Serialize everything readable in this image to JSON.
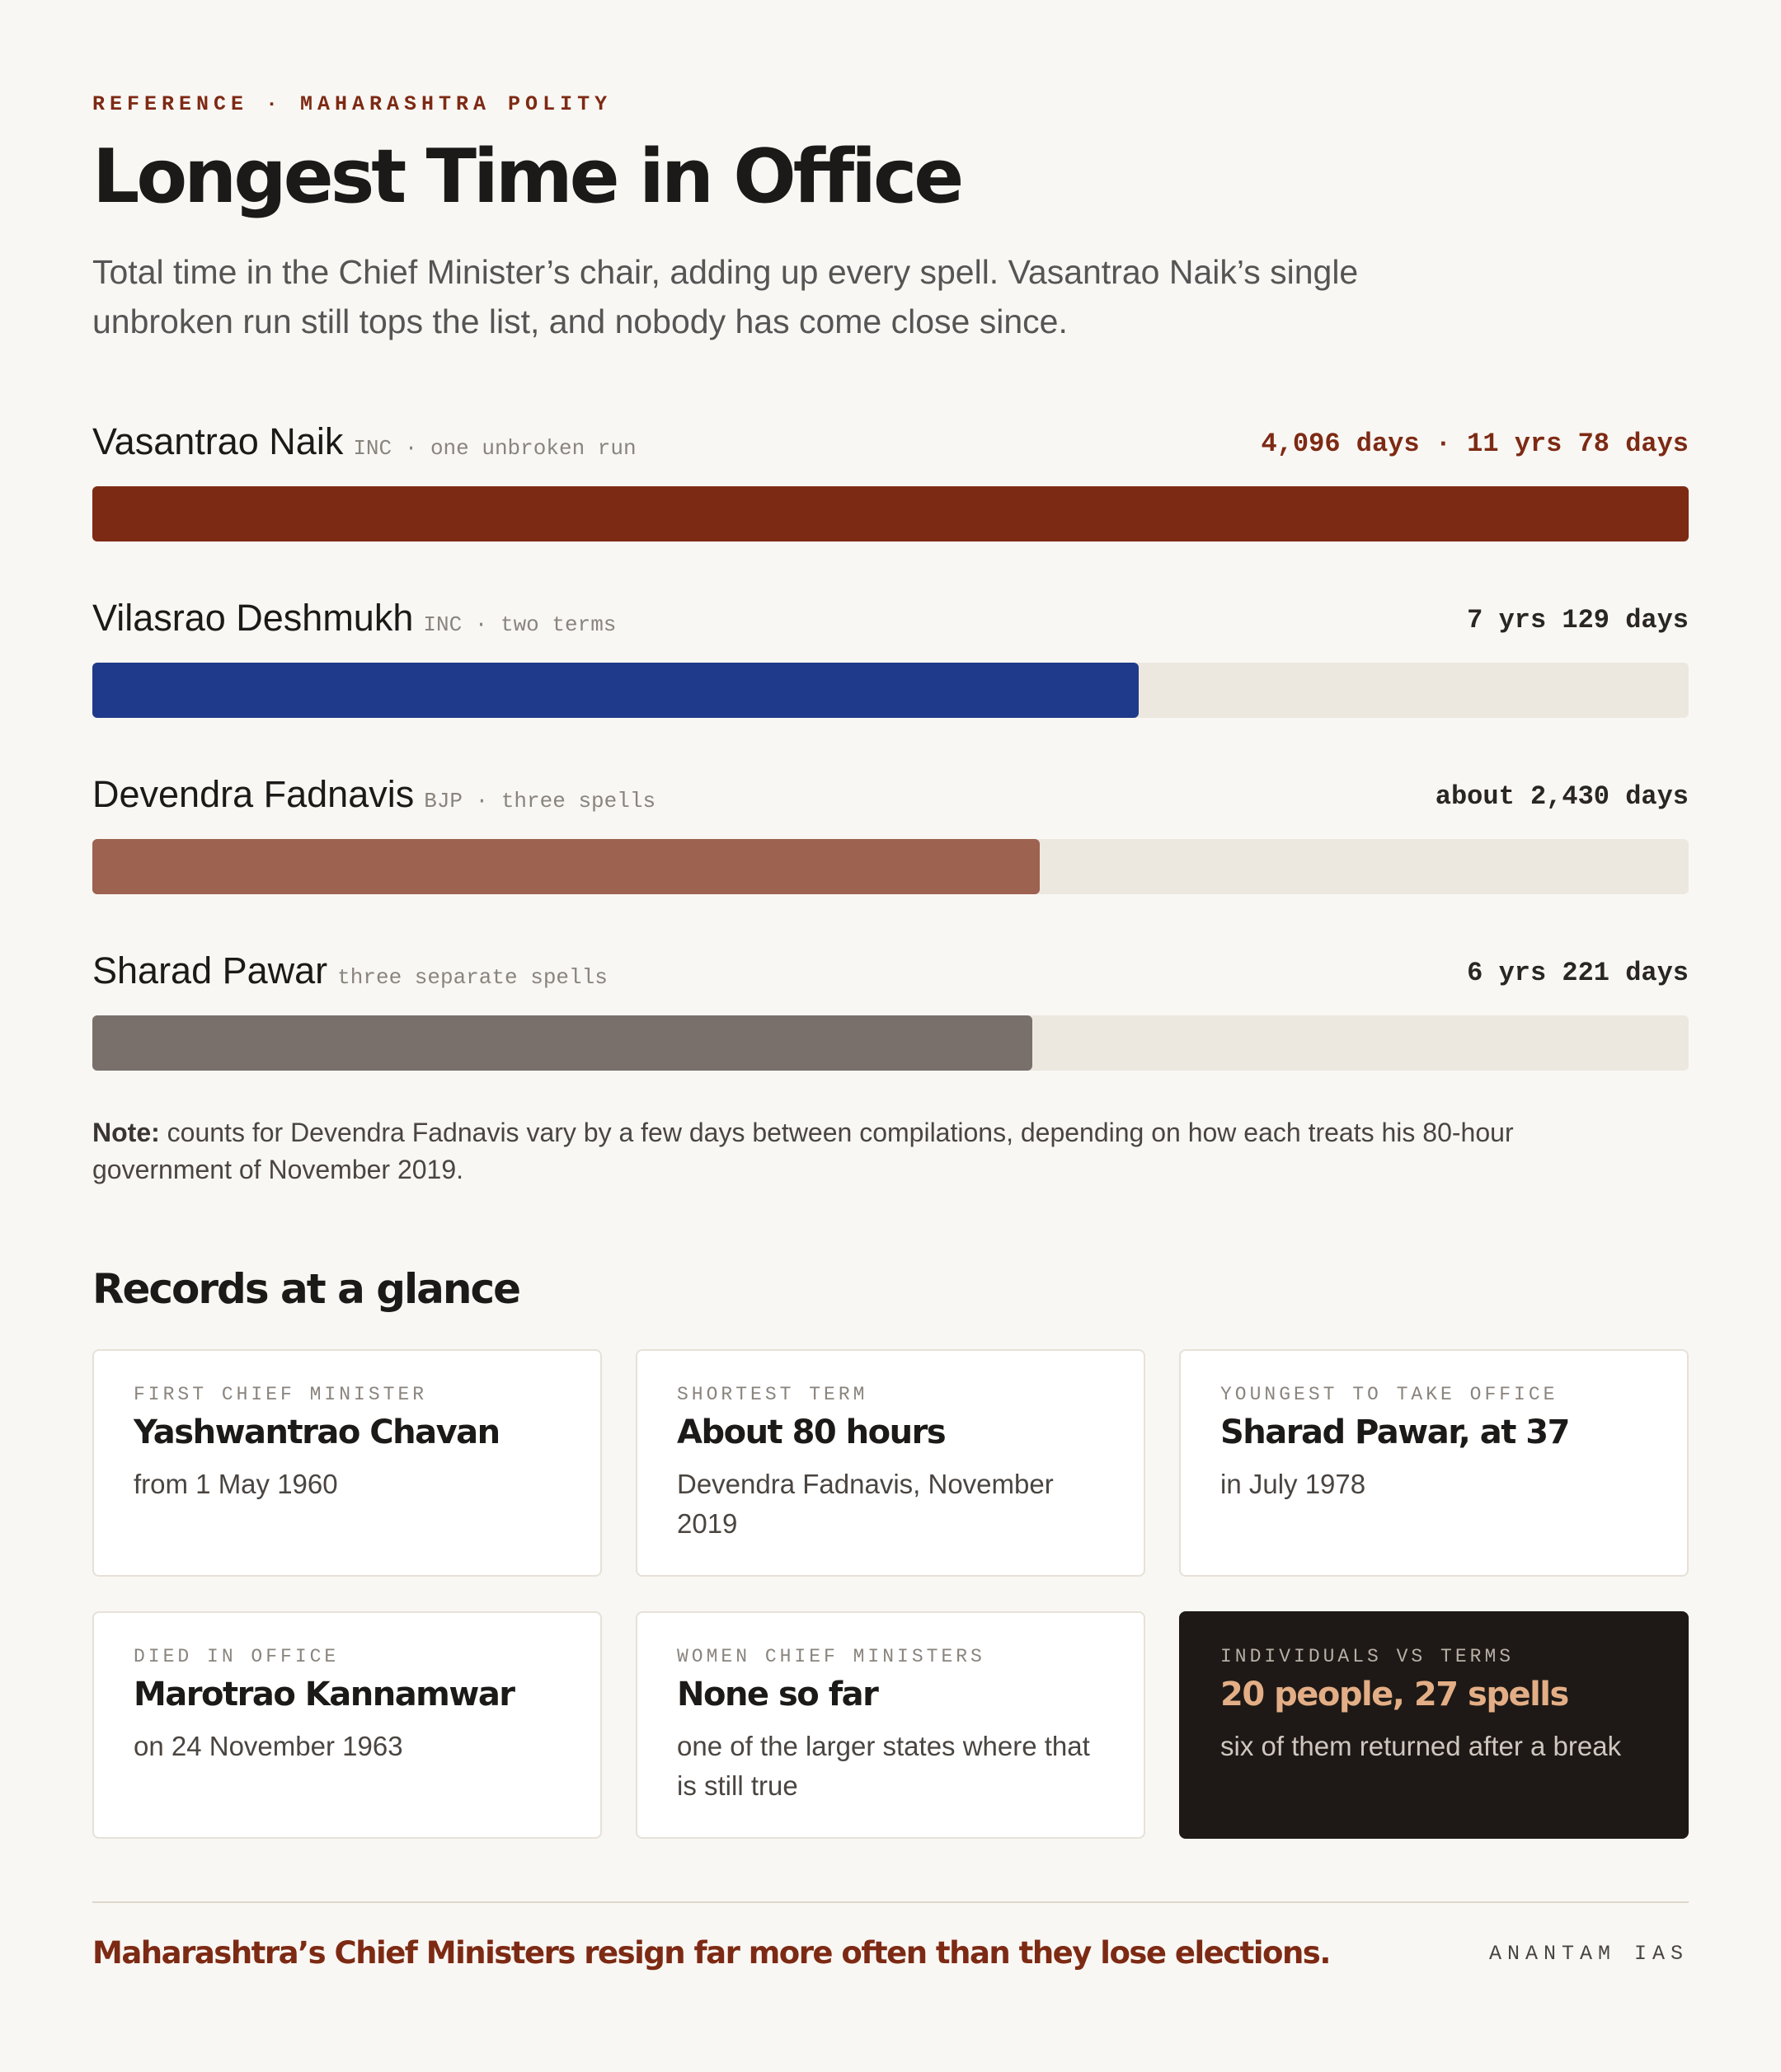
{
  "header": {
    "eyebrow": "REFERENCE · MAHARASHTRA POLITY",
    "title": "Longest Time in Office",
    "subtitle": "Total time in the Chief Minister’s chair, adding up every spell. Vasantrao Naik’s single unbroken run still tops the list, and nobody has come close since."
  },
  "chart_data": {
    "type": "bar",
    "categories": [
      "Vasantrao Naik",
      "Vilasrao Deshmukh",
      "Devendra Fadnavis",
      "Sharad Pawar"
    ],
    "details": [
      "INC · one unbroken run",
      "INC · two terms",
      "BJP · three spells",
      "three separate spells"
    ],
    "values": [
      4096,
      2685,
      2430,
      2412
    ],
    "value_labels": [
      "4,096 days · 11 yrs 78 days",
      "7 yrs 129 days",
      "about 2,430 days",
      "6 yrs 221 days"
    ],
    "colors": [
      "#7d2a14",
      "#1f3a8a",
      "#9e6250",
      "#79706b"
    ],
    "xlim": [
      0,
      4096
    ]
  },
  "note": {
    "label": "Note:",
    "text": "counts for Devendra Fadnavis vary by a few days between compilations, depending on how each treats his 80-hour government of November 2019."
  },
  "records": {
    "title": "Records at a glance",
    "cards": [
      {
        "label": "FIRST CHIEF MINISTER",
        "heading": "Yashwantrao Chavan",
        "text": "from 1 May 1960"
      },
      {
        "label": "SHORTEST TERM",
        "heading": "About 80 hours",
        "text": "Devendra Fadnavis, November 2019"
      },
      {
        "label": "YOUNGEST TO TAKE OFFICE",
        "heading": "Sharad Pawar, at 37",
        "text": "in July 1978"
      },
      {
        "label": "DIED IN OFFICE",
        "heading": "Marotrao Kannamwar",
        "text": "on 24 November 1963"
      },
      {
        "label": "WOMEN CHIEF MINISTERS",
        "heading": "None so far",
        "text": "one of the larger states where that is still true"
      },
      {
        "label": "INDIVIDUALS VS TERMS",
        "heading": "20 people, 27 spells",
        "text": "six of them returned after a break"
      }
    ]
  },
  "footer": {
    "tagline": "Maharashtra’s Chief Ministers resign far more often than they lose elections.",
    "brand": "ANANTAM IAS"
  }
}
